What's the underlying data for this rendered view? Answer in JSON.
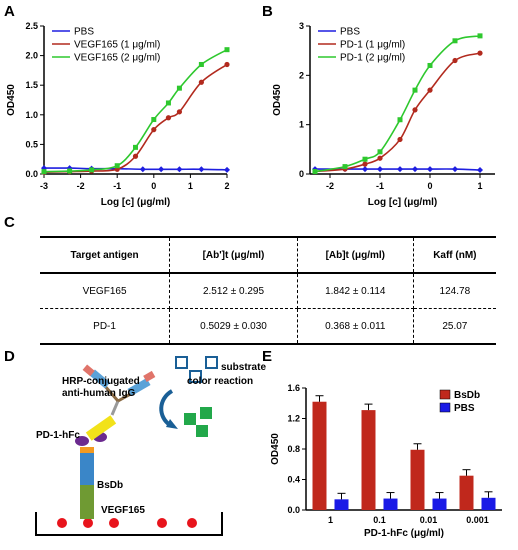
{
  "panels": {
    "a": "A",
    "b": "B",
    "c": "C",
    "d": "D",
    "e": "E"
  },
  "chart_data": [
    {
      "id": "A",
      "type": "line",
      "xlabel": "Log [c] (μg/ml)",
      "ylabel": "OD450",
      "xlim": [
        -3,
        2
      ],
      "ylim": [
        0,
        2.5
      ],
      "xticks": [
        -3,
        -2,
        -1,
        0,
        1,
        2
      ],
      "yticks": [
        0.0,
        0.5,
        1.0,
        1.5,
        2.0,
        2.5
      ],
      "legend_position": "top-left",
      "series": [
        {
          "name": "PBS",
          "color": "#1f1fe0",
          "x": [
            -3,
            -2.3,
            -1.7,
            -1,
            -0.3,
            0.2,
            0.7,
            1.3,
            2
          ],
          "y": [
            0.1,
            0.1,
            0.09,
            0.09,
            0.08,
            0.08,
            0.08,
            0.08,
            0.07
          ]
        },
        {
          "name": "VEGF165 (1 μg/ml)",
          "color": "#b22a1e",
          "x": [
            -3,
            -2.3,
            -1.7,
            -1,
            -0.5,
            0.0,
            0.4,
            0.7,
            1.3,
            2
          ],
          "y": [
            0.03,
            0.04,
            0.05,
            0.08,
            0.3,
            0.75,
            0.95,
            1.05,
            1.55,
            1.85
          ]
        },
        {
          "name": "VEGF165 (2 μg/ml)",
          "color": "#2ec82e",
          "x": [
            -3,
            -2.3,
            -1.7,
            -1,
            -0.5,
            0.0,
            0.4,
            0.7,
            1.3,
            2
          ],
          "y": [
            0.04,
            0.05,
            0.07,
            0.14,
            0.45,
            0.92,
            1.2,
            1.45,
            1.85,
            2.1
          ]
        }
      ]
    },
    {
      "id": "B",
      "type": "line",
      "xlabel": "Log [c] (μg/ml)",
      "ylabel": "OD450",
      "xlim": [
        -2.4,
        1.3
      ],
      "ylim": [
        0,
        3
      ],
      "xticks": [
        -2,
        -1,
        0,
        1
      ],
      "yticks": [
        0,
        1,
        2,
        3
      ],
      "legend_position": "top-left",
      "series": [
        {
          "name": "PBS",
          "color": "#1f1fe0",
          "x": [
            -2.3,
            -1.7,
            -1.3,
            -1,
            -0.6,
            -0.3,
            0,
            0.5,
            1
          ],
          "y": [
            0.1,
            0.1,
            0.1,
            0.1,
            0.1,
            0.1,
            0.1,
            0.1,
            0.08
          ]
        },
        {
          "name": "PD-1 (1 μg/ml)",
          "color": "#b22a1e",
          "x": [
            -2.3,
            -1.7,
            -1.3,
            -1,
            -0.6,
            -0.3,
            0,
            0.5,
            1
          ],
          "y": [
            0.05,
            0.1,
            0.2,
            0.32,
            0.7,
            1.3,
            1.7,
            2.3,
            2.45
          ]
        },
        {
          "name": "PD-1 (2 μg/ml)",
          "color": "#2ec82e",
          "x": [
            -2.3,
            -1.7,
            -1.3,
            -1,
            -0.6,
            -0.3,
            0,
            0.5,
            1
          ],
          "y": [
            0.05,
            0.15,
            0.3,
            0.45,
            1.1,
            1.7,
            2.2,
            2.7,
            2.8
          ]
        }
      ]
    },
    {
      "id": "C",
      "type": "table",
      "columns": [
        "Target antigen",
        "[Ab']t (μg/ml)",
        "[Ab]t (μg/ml)",
        "Kaff (nM)"
      ],
      "rows": [
        [
          "VEGF165",
          "2.512 ± 0.295",
          "1.842 ± 0.114",
          "124.78"
        ],
        [
          "PD-1",
          "0.5029 ± 0.030",
          "0.368 ± 0.011",
          "25.07"
        ]
      ]
    },
    {
      "id": "E",
      "type": "bar",
      "xlabel": "PD-1-hFc (μg/ml)",
      "ylabel": "OD450",
      "categories": [
        "1",
        "0.1",
        "0.01",
        "0.001"
      ],
      "ylim": [
        0,
        1.6
      ],
      "yticks": [
        0.0,
        0.4,
        0.8,
        1.2,
        1.6
      ],
      "legend_position": "top-right",
      "series": [
        {
          "name": "BsDb",
          "color": "#c0281c",
          "values": [
            1.42,
            1.31,
            0.79,
            0.45
          ]
        },
        {
          "name": "PBS",
          "color": "#1a1ae6",
          "values": [
            0.14,
            0.15,
            0.15,
            0.16
          ]
        }
      ]
    }
  ],
  "diagram": {
    "hrp_label": "HRP-conjugated\nanti-human IgG",
    "substrate_label": "substrate",
    "color_label": "color reaction",
    "pd1_label": "PD-1-hFc",
    "bsdb_label": "BsDb",
    "vegf_label": "VEGF165"
  }
}
